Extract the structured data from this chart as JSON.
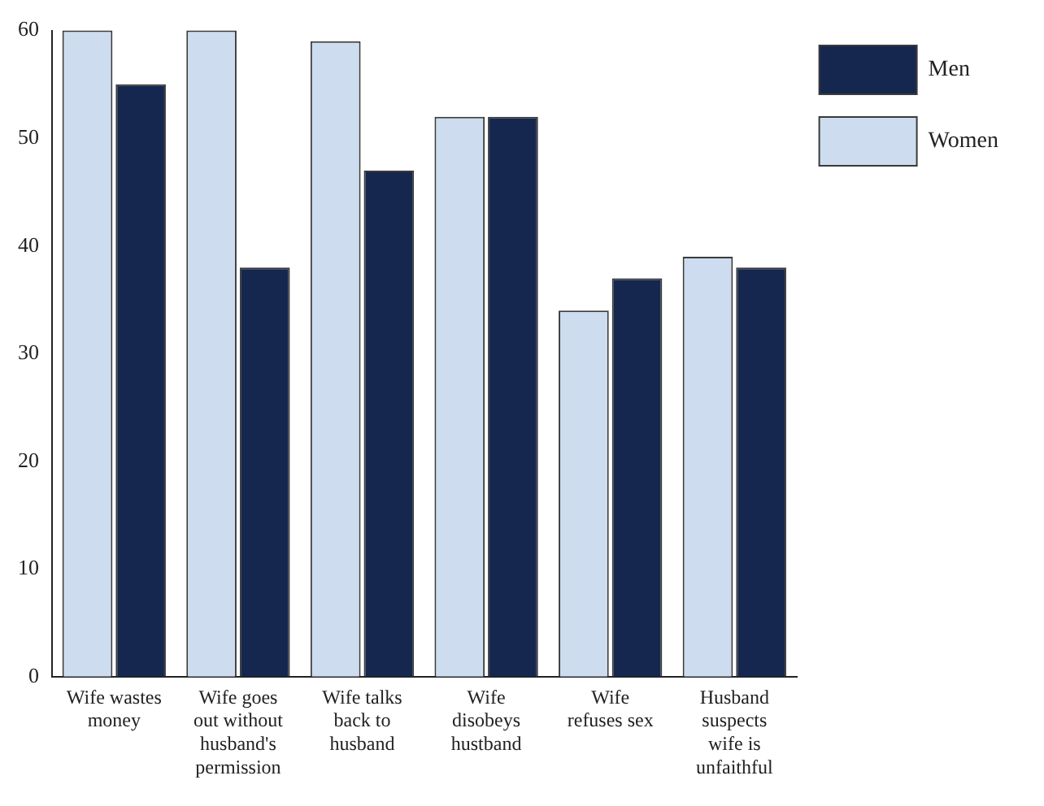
{
  "chart_data": {
    "type": "bar",
    "categories": [
      "Wife wastes money",
      "Wife goes out without husband's permission",
      "Wife talks back to husband",
      "Wife disobeys hustband",
      "Wife refuses sex",
      "Husband suspects wife is unfaithful"
    ],
    "series": [
      {
        "name": "Women",
        "color": "#cddcee",
        "values": [
          60,
          60,
          59,
          52,
          34,
          39
        ]
      },
      {
        "name": "Men",
        "color": "#15274f",
        "values": [
          55,
          38,
          47,
          52,
          37,
          38
        ]
      }
    ],
    "ylim": [
      0,
      60
    ],
    "yticks": [
      0,
      10,
      20,
      30,
      40,
      50,
      60
    ],
    "grid": false,
    "legend": "top right"
  }
}
